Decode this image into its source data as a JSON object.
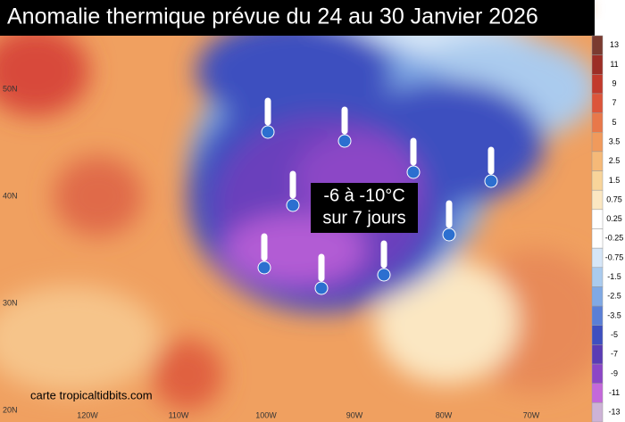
{
  "title": "Anomalie thermique prévue du 24 au 30 Janvier 2026",
  "annotation": {
    "line1": "-6 à -10°C",
    "line2": "sur 7 jours"
  },
  "credit": "carte tropicaltidbits.com",
  "latitude_labels": [
    "50N",
    "40N",
    "30N",
    "20N"
  ],
  "longitude_labels": [
    "120W",
    "110W",
    "100W",
    "90W",
    "80W",
    "70W"
  ],
  "colorbar": {
    "labels": [
      13,
      11,
      9,
      7,
      5,
      3.5,
      2.5,
      1.5,
      0.75,
      0.25,
      -0.25,
      -0.75,
      -1.5,
      -2.5,
      -3.5,
      -5,
      -7,
      -9,
      -11,
      -13
    ],
    "colors": [
      "#7a3b30",
      "#9c2e26",
      "#c23a2c",
      "#dc553a",
      "#e8784a",
      "#f09a5c",
      "#f5b978",
      "#f8d49a",
      "#fbe7c2",
      "#ffffff",
      "#ffffff",
      "#d6e6f7",
      "#aacbee",
      "#80a9e4",
      "#5a7fd6",
      "#3e4fbf",
      "#5a3cb4",
      "#8c46c6",
      "#c468da",
      "#cdb3d6"
    ]
  }
}
